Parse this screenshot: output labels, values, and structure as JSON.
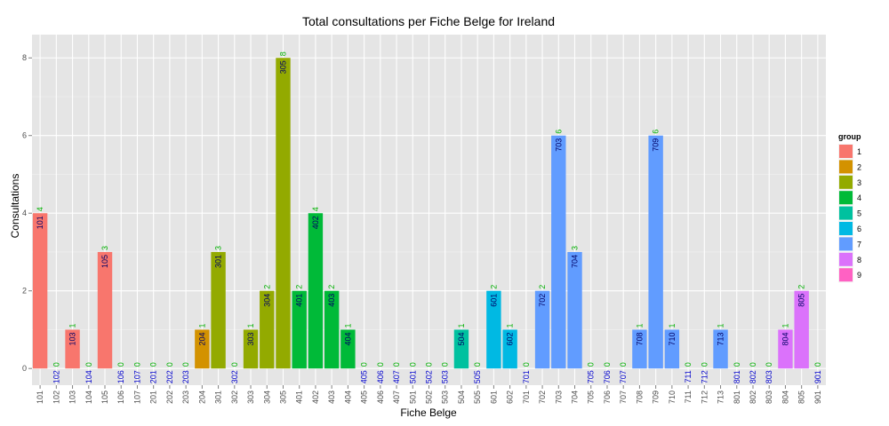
{
  "chart_data": {
    "type": "bar",
    "title": "Total consultations per Fiche Belge for Ireland",
    "xlabel": "Fiche Belge",
    "ylabel": "Consultations",
    "ylim": [
      0,
      8.6
    ],
    "y_ticks": [
      0,
      2,
      4,
      6,
      8
    ],
    "grid": true,
    "legend": {
      "title": "group",
      "position": "right",
      "entries": [
        {
          "label": "1",
          "color": "#F8766D"
        },
        {
          "label": "2",
          "color": "#D39200"
        },
        {
          "label": "3",
          "color": "#93AA00"
        },
        {
          "label": "4",
          "color": "#00BA38"
        },
        {
          "label": "5",
          "color": "#00C19F"
        },
        {
          "label": "6",
          "color": "#00B9E3"
        },
        {
          "label": "7",
          "color": "#619CFF"
        },
        {
          "label": "8",
          "color": "#DB72FB"
        },
        {
          "label": "9",
          "color": "#FF61C3"
        }
      ]
    },
    "categories": [
      "101",
      "102",
      "103",
      "104",
      "105",
      "106",
      "107",
      "201",
      "202",
      "203",
      "204",
      "301",
      "302",
      "303",
      "304",
      "305",
      "401",
      "402",
      "403",
      "404",
      "405",
      "406",
      "407",
      "501",
      "502",
      "503",
      "504",
      "505",
      "601",
      "602",
      "701",
      "702",
      "703",
      "704",
      "705",
      "706",
      "707",
      "708",
      "709",
      "710",
      "711",
      "712",
      "713",
      "801",
      "802",
      "803",
      "804",
      "805",
      "901"
    ],
    "values": [
      4,
      0,
      1,
      0,
      3,
      0,
      0,
      0,
      0,
      0,
      1,
      3,
      0,
      1,
      2,
      8,
      2,
      4,
      2,
      1,
      0,
      0,
      0,
      0,
      0,
      0,
      1,
      0,
      2,
      1,
      0,
      2,
      6,
      3,
      0,
      0,
      0,
      1,
      6,
      1,
      0,
      0,
      1,
      0,
      0,
      0,
      1,
      2,
      0
    ],
    "groups": [
      "1",
      "1",
      "1",
      "1",
      "1",
      "1",
      "1",
      "2",
      "2",
      "2",
      "2",
      "3",
      "3",
      "3",
      "3",
      "3",
      "4",
      "4",
      "4",
      "4",
      "4",
      "4",
      "4",
      "5",
      "5",
      "5",
      "5",
      "5",
      "6",
      "6",
      "7",
      "7",
      "7",
      "7",
      "7",
      "7",
      "7",
      "7",
      "7",
      "7",
      "7",
      "7",
      "7",
      "8",
      "8",
      "8",
      "8",
      "8",
      "9"
    ]
  }
}
